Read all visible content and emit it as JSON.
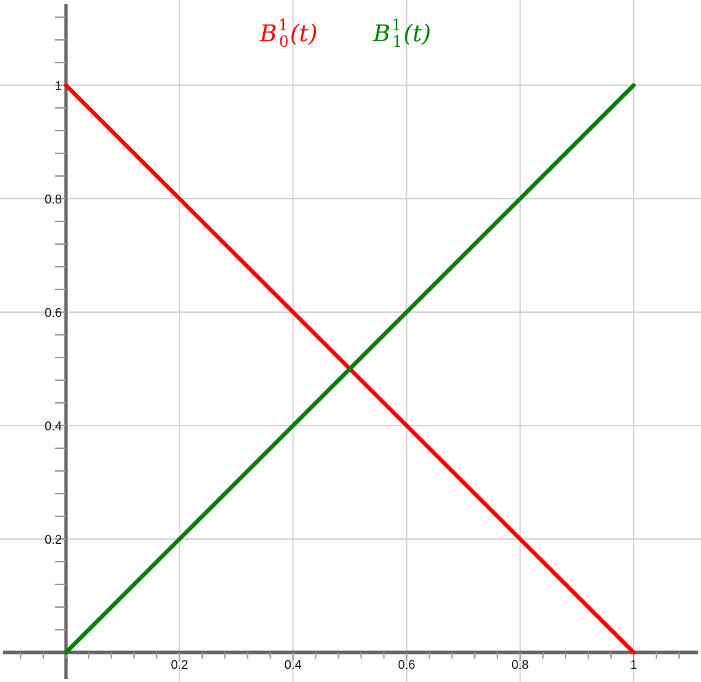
{
  "chart_data": {
    "type": "line",
    "title": "",
    "xlabel": "",
    "ylabel": "",
    "xlim": [
      -0.11,
      1.12
    ],
    "ylim": [
      -0.05,
      1.15
    ],
    "x_ticks": [
      0.2,
      0.4,
      0.6,
      0.8,
      1
    ],
    "x_tick_labels": [
      "0.2",
      "0.4",
      "0.6",
      "0.8",
      "1"
    ],
    "y_ticks": [
      0.2,
      0.4,
      0.6,
      0.8,
      1
    ],
    "y_tick_labels": [
      "0.2",
      "0.4",
      "0.6",
      "0.8",
      "1"
    ],
    "minor_step": 0.04,
    "grid": true,
    "legend_position": "top-center",
    "series": [
      {
        "name": "B_0^1(t)",
        "label_base": "B",
        "label_sup": "1",
        "label_sub": "0",
        "label_arg": "(t)",
        "color": "#ff0000",
        "x": [
          0,
          1
        ],
        "y": [
          1,
          0
        ]
      },
      {
        "name": "B_1^1(t)",
        "label_base": "B",
        "label_sup": "1",
        "label_sub": "1",
        "label_arg": "(t)",
        "color": "#008000",
        "x": [
          0,
          1
        ],
        "y": [
          0,
          1
        ]
      }
    ],
    "colors": {
      "axis": "#666666",
      "grid": "#d3d3d3"
    }
  }
}
